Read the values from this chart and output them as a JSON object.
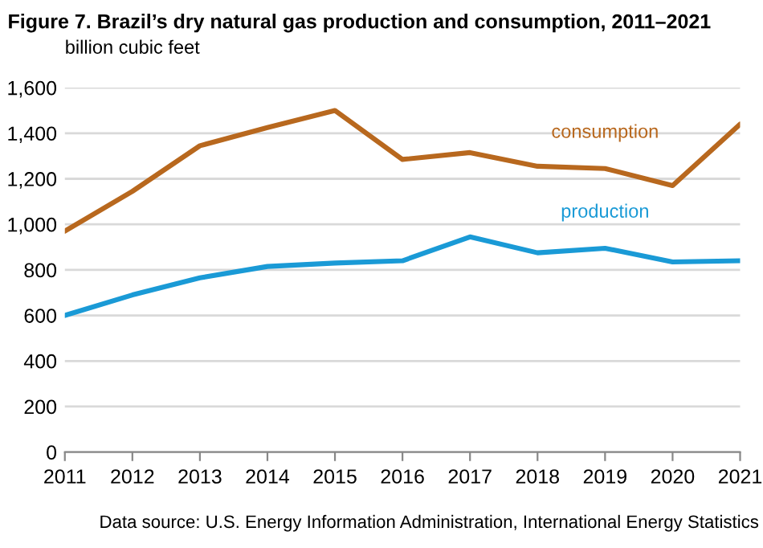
{
  "chart_data": {
    "type": "line",
    "title": "Figure 7. Brazil’s dry natural gas production and consumption, 2011–2021",
    "ylabel": "billion cubic feet",
    "x": [
      2011,
      2012,
      2013,
      2014,
      2015,
      2016,
      2017,
      2018,
      2019,
      2020,
      2021
    ],
    "series": [
      {
        "name": "consumption",
        "color": "#b8681e",
        "values": [
          970,
          1145,
          1345,
          1425,
          1500,
          1285,
          1315,
          1255,
          1245,
          1170,
          1440
        ]
      },
      {
        "name": "production",
        "color": "#1a9ad6",
        "values": [
          600,
          690,
          765,
          815,
          830,
          840,
          945,
          875,
          895,
          835,
          840
        ]
      }
    ],
    "xlim": [
      2011,
      2021
    ],
    "xticks": [
      2011,
      2012,
      2013,
      2014,
      2015,
      2016,
      2017,
      2018,
      2019,
      2020,
      2021
    ],
    "ylim": [
      0,
      1600
    ],
    "yticks": [
      0,
      {
        "value": 200,
        "label": "200"
      },
      {
        "value": 400,
        "label": "400"
      },
      {
        "value": 600,
        "label": "600"
      },
      {
        "value": 800,
        "label": "800"
      },
      {
        "value": 1000,
        "label": "1,000"
      },
      {
        "value": 1200,
        "label": "1,200"
      },
      {
        "value": 1400,
        "label": "1,400"
      },
      {
        "value": 1600,
        "label": "1,600"
      }
    ],
    "grid": "y",
    "legend": false,
    "marker": "none",
    "line_style": "solid",
    "annotations": [
      "Data source: U.S. Energy Information Administration, International Energy Statistics"
    ]
  }
}
